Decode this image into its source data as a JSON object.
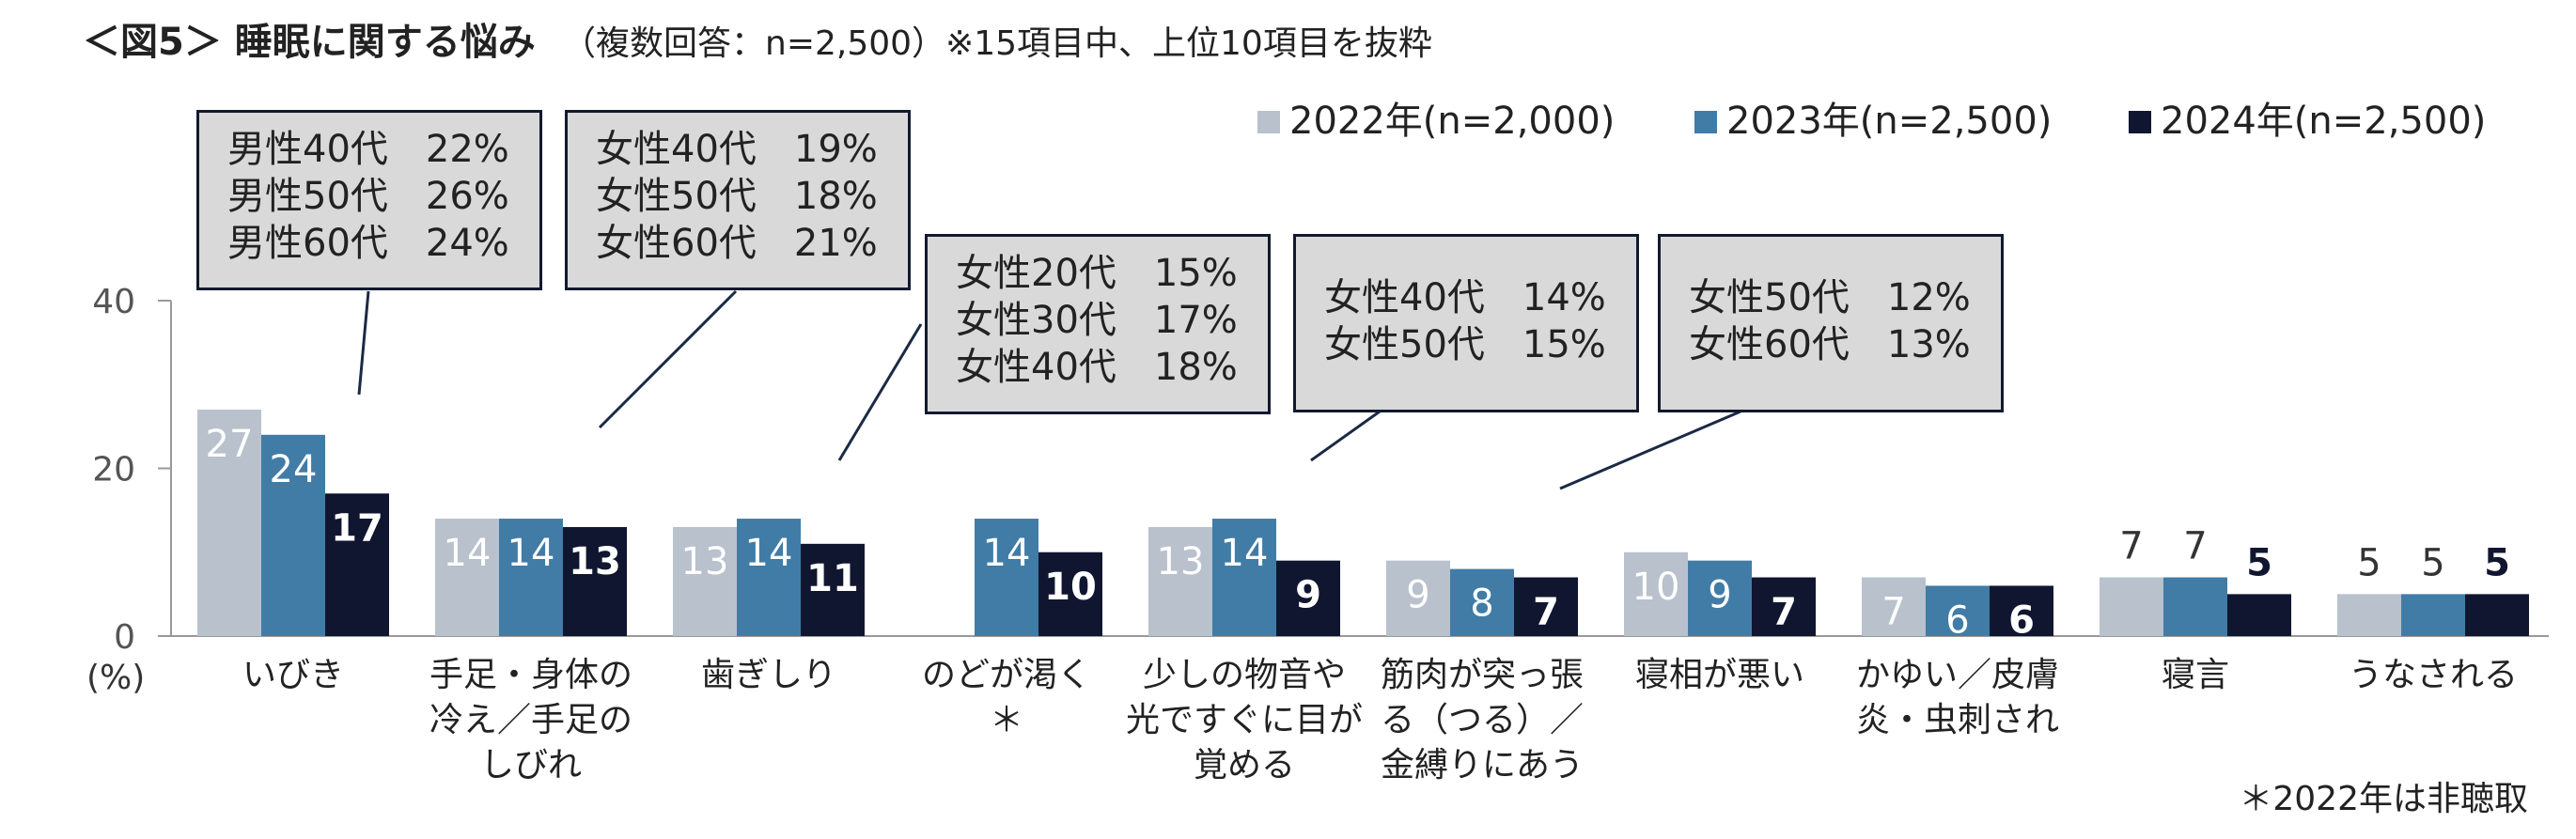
{
  "chart_data": {
    "type": "bar",
    "title": "＜図5＞ 睡眠に関する悩み",
    "subtitle": "（複数回答：n=2,500）※15項目中、上位10項目を抜粋",
    "ylabel": "(%)",
    "ylim": [
      0,
      40
    ],
    "yticks": [
      "0",
      "20",
      "40"
    ],
    "grid": false,
    "legend_position": "top-right",
    "categories": [
      [
        "いびき"
      ],
      [
        "手足・身体の",
        "冷え／手足の",
        "しびれ"
      ],
      [
        "歯ぎしり"
      ],
      [
        "のどが渇く",
        "＊"
      ],
      [
        "少しの物音や",
        "光ですぐに目が",
        "覚める"
      ],
      [
        "筋肉が突っ張",
        "る（つる）／",
        "金縛りにあう"
      ],
      [
        "寝相が悪い"
      ],
      [
        "かゆい／皮膚",
        "炎・虫刺され"
      ],
      [
        "寝言"
      ],
      [
        "うなされる"
      ]
    ],
    "series": [
      {
        "name": "2022年(n=2,000)",
        "color": "#b8c1cc",
        "label_color": "#ffffff",
        "values": [
          27,
          14,
          13,
          null,
          13,
          9,
          10,
          7,
          7,
          5
        ]
      },
      {
        "name": "2023年(n=2,500)",
        "color": "#417ca6",
        "label_color": "#ffffff",
        "values": [
          24,
          14,
          14,
          14,
          14,
          8,
          9,
          6,
          7,
          5
        ]
      },
      {
        "name": "2024年(n=2,500)",
        "color": "#111630",
        "label_color": "#ffffff",
        "values": [
          17,
          13,
          11,
          10,
          9,
          7,
          7,
          6,
          5,
          5
        ]
      }
    ],
    "label_outside_categories": [
      8,
      9
    ],
    "footnote": "＊2022年は非聴取",
    "callouts": [
      {
        "lines": [
          "男性40代　22%",
          "男性50代　26%",
          "男性60代　24%"
        ]
      },
      {
        "lines": [
          "女性40代　19%",
          "女性50代　18%",
          "女性60代　21%"
        ]
      },
      {
        "lines": [
          "女性20代　15%",
          "女性30代　17%",
          "女性40代　18%"
        ]
      },
      {
        "lines": [
          "女性40代　14%",
          "女性50代　15%"
        ]
      },
      {
        "lines": [
          "女性50代　12%",
          "女性60代　13%"
        ]
      }
    ]
  }
}
